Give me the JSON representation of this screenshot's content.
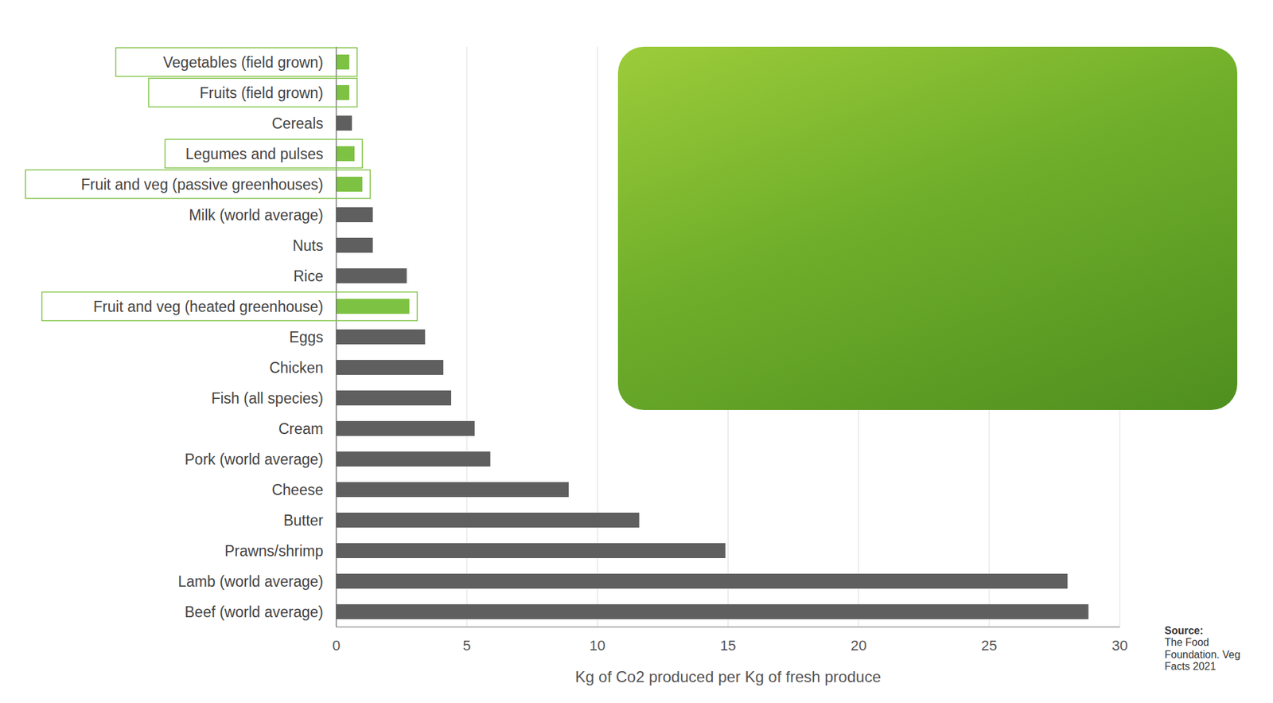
{
  "chart_data": {
    "type": "bar",
    "orientation": "horizontal",
    "categories": [
      "Vegetables (field grown)",
      "Fruits (field grown)",
      "Cereals",
      "Legumes and pulses",
      "Fruit and veg (passive greenhouses)",
      "Milk (world average)",
      "Nuts",
      "Rice",
      "Fruit and veg (heated greenhouse)",
      "Eggs",
      "Chicken",
      "Fish (all species)",
      "Cream",
      "Pork (world average)",
      "Cheese",
      "Butter",
      "Prawns/shrimp",
      "Lamb (world average)",
      "Beef (world average)"
    ],
    "values": [
      0.5,
      0.5,
      0.6,
      0.7,
      1.0,
      1.4,
      1.4,
      2.7,
      2.8,
      3.4,
      4.1,
      4.4,
      5.3,
      5.9,
      8.9,
      11.6,
      14.9,
      28.0,
      28.8
    ],
    "colors": [
      "#7dc242",
      "#7dc242",
      "#5f5f5f",
      "#7dc242",
      "#7dc242",
      "#5f5f5f",
      "#5f5f5f",
      "#5f5f5f",
      "#7dc242",
      "#5f5f5f",
      "#5f5f5f",
      "#5f5f5f",
      "#5f5f5f",
      "#5f5f5f",
      "#5f5f5f",
      "#5f5f5f",
      "#5f5f5f",
      "#5f5f5f",
      "#5f5f5f"
    ],
    "x_label": "Kg of Co2 produced per Kg of fresh produce",
    "xlim": [
      0,
      30
    ],
    "xticks": [
      0,
      5,
      10,
      15,
      20,
      25,
      30
    ],
    "grid": true,
    "source_label": "Source:",
    "source": "The Food Foundation. Veg Facts 2021"
  }
}
